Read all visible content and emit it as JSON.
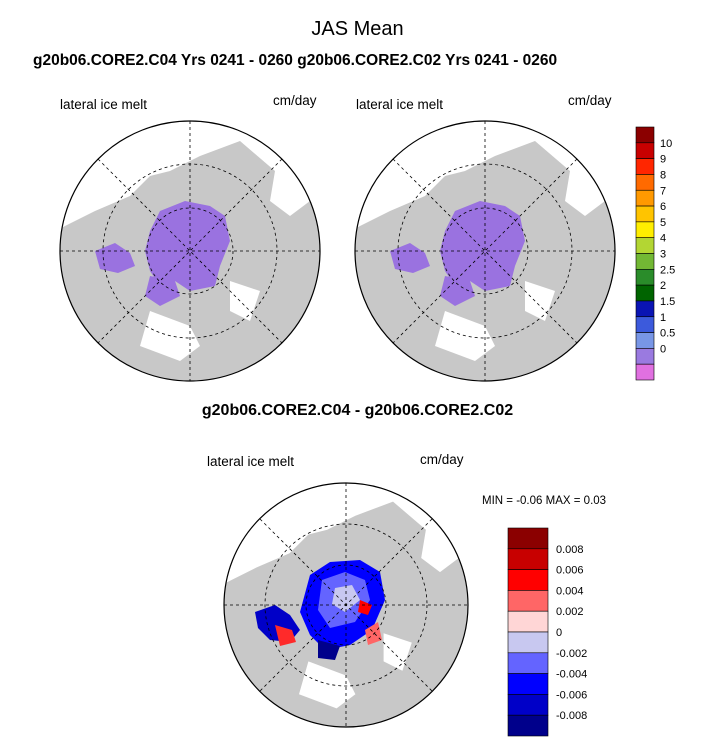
{
  "title": "JAS Mean",
  "subtitle": "g20b06.CORE2.C04  Yrs 0241 - 0260 g20b06.CORE2.C02  Yrs 0241 - 0260",
  "panels": [
    {
      "label": "lateral ice melt",
      "units": "cm/day"
    },
    {
      "label": "lateral ice melt",
      "units": "cm/day"
    }
  ],
  "diff": {
    "title": "g20b06.CORE2.C04 - g20b06.CORE2.C02",
    "label": "lateral ice melt",
    "units": "cm/day",
    "min_label": "MIN =",
    "min_value": "-0.06",
    "max_label": "MAX =",
    "max_value": "0.03"
  },
  "colorbar_top": {
    "labels": [
      "10",
      "9",
      "8",
      "7",
      "6",
      "5",
      "4",
      "3",
      "2.5",
      "2",
      "1.5",
      "1",
      "0.5",
      "0"
    ],
    "colors": [
      "#8b0000",
      "#c80000",
      "#ff2600",
      "#ff6a00",
      "#ff9900",
      "#ffc400",
      "#ffee00",
      "#b3d633",
      "#72b834",
      "#2a8c2a",
      "#006400",
      "#0a14b4",
      "#3c5adc",
      "#7896e6",
      "#9a7ae0",
      "#e070e0"
    ]
  },
  "colorbar_diff": {
    "labels": [
      "0.008",
      "0.006",
      "0.004",
      "0.002",
      "0",
      "-0.002",
      "-0.004",
      "-0.006",
      "-0.008"
    ],
    "colors": [
      "#8b0000",
      "#c80000",
      "#ff0000",
      "#ff6666",
      "#ffd6d6",
      "#c8c8f0",
      "#6464ff",
      "#0000ff",
      "#0000c8",
      "#00008b"
    ]
  },
  "map_colors": {
    "land": "#c8c8c8",
    "ice_melt": "#9a72e0",
    "ocean": "#ffffff"
  }
}
